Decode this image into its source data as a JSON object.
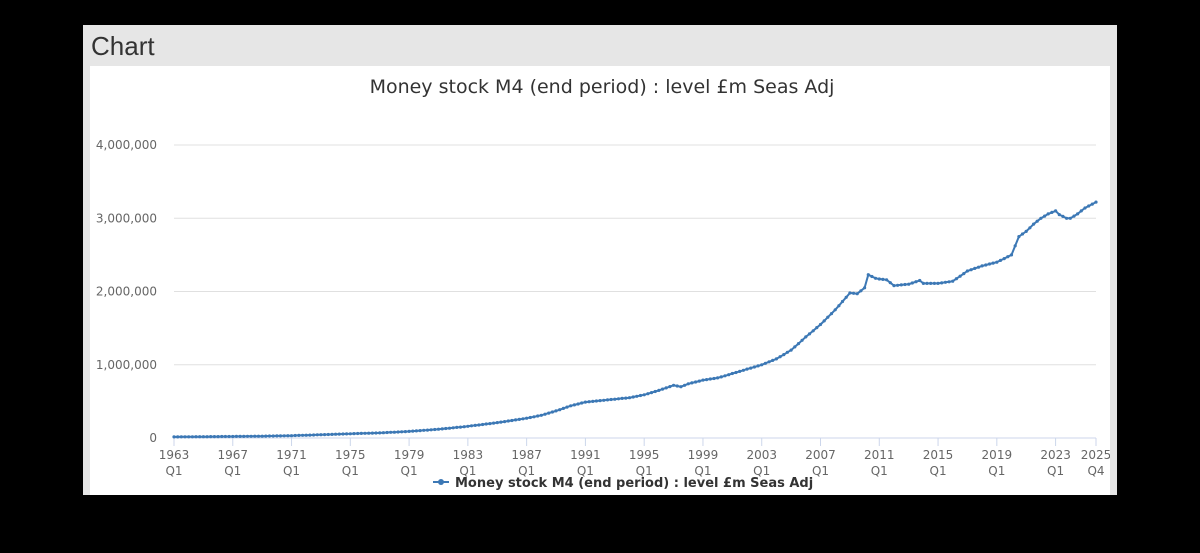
{
  "panel": {
    "title": "Chart"
  },
  "colors": {
    "series": "#3c78b5",
    "grid": "#e0e0e0",
    "axis": "#ccd6eb"
  },
  "chart_data": {
    "type": "line",
    "title": "Money stock M4 (end period) : level £m Seas Adj",
    "xlabel": "",
    "ylabel": "",
    "ylim": [
      0,
      4000000
    ],
    "y_ticks": [
      0,
      1000000,
      2000000,
      3000000,
      4000000
    ],
    "y_tick_labels": [
      "0",
      "1,000,000",
      "2,000,000",
      "3,000,000",
      "4,000,000"
    ],
    "x_range": [
      1963.0,
      2025.75
    ],
    "x_ticks": [
      {
        "year": "1963",
        "q": "Q1",
        "x": 1963.0
      },
      {
        "year": "1967",
        "q": "Q1",
        "x": 1967.0
      },
      {
        "year": "1971",
        "q": "Q1",
        "x": 1971.0
      },
      {
        "year": "1975",
        "q": "Q1",
        "x": 1975.0
      },
      {
        "year": "1979",
        "q": "Q1",
        "x": 1979.0
      },
      {
        "year": "1983",
        "q": "Q1",
        "x": 1983.0
      },
      {
        "year": "1987",
        "q": "Q1",
        "x": 1987.0
      },
      {
        "year": "1991",
        "q": "Q1",
        "x": 1991.0
      },
      {
        "year": "1995",
        "q": "Q1",
        "x": 1995.0
      },
      {
        "year": "1999",
        "q": "Q1",
        "x": 1999.0
      },
      {
        "year": "2003",
        "q": "Q1",
        "x": 2003.0
      },
      {
        "year": "2007",
        "q": "Q1",
        "x": 2007.0
      },
      {
        "year": "2011",
        "q": "Q1",
        "x": 2011.0
      },
      {
        "year": "2015",
        "q": "Q1",
        "x": 2015.0
      },
      {
        "year": "2019",
        "q": "Q1",
        "x": 2019.0
      },
      {
        "year": "2023",
        "q": "Q1",
        "x": 2023.0
      },
      {
        "year": "2025",
        "q": "Q4",
        "x": 2025.75
      }
    ],
    "legend": "bottom-center",
    "series": [
      {
        "name": "Money stock M4 (end period) : level £m Seas Adj",
        "points": [
          [
            1963.0,
            15000
          ],
          [
            1965.0,
            18000
          ],
          [
            1967.0,
            21000
          ],
          [
            1969.0,
            25000
          ],
          [
            1971.0,
            32000
          ],
          [
            1973.0,
            45000
          ],
          [
            1975.0,
            58000
          ],
          [
            1977.0,
            70000
          ],
          [
            1979.0,
            90000
          ],
          [
            1981.0,
            120000
          ],
          [
            1983.0,
            160000
          ],
          [
            1985.0,
            210000
          ],
          [
            1987.0,
            270000
          ],
          [
            1988.0,
            310000
          ],
          [
            1989.0,
            370000
          ],
          [
            1990.0,
            440000
          ],
          [
            1991.0,
            490000
          ],
          [
            1992.0,
            510000
          ],
          [
            1993.0,
            530000
          ],
          [
            1994.0,
            550000
          ],
          [
            1995.0,
            590000
          ],
          [
            1996.0,
            650000
          ],
          [
            1997.0,
            720000
          ],
          [
            1997.5,
            700000
          ],
          [
            1998.0,
            740000
          ],
          [
            1999.0,
            790000
          ],
          [
            2000.0,
            820000
          ],
          [
            2001.0,
            880000
          ],
          [
            2002.0,
            940000
          ],
          [
            2003.0,
            1000000
          ],
          [
            2004.0,
            1080000
          ],
          [
            2005.0,
            1200000
          ],
          [
            2006.0,
            1380000
          ],
          [
            2007.0,
            1550000
          ],
          [
            2008.0,
            1750000
          ],
          [
            2009.0,
            1980000
          ],
          [
            2009.5,
            1970000
          ],
          [
            2010.0,
            2050000
          ],
          [
            2010.25,
            2230000
          ],
          [
            2010.75,
            2180000
          ],
          [
            2011.0,
            2170000
          ],
          [
            2011.5,
            2160000
          ],
          [
            2012.0,
            2080000
          ],
          [
            2013.0,
            2100000
          ],
          [
            2013.75,
            2150000
          ],
          [
            2014.0,
            2110000
          ],
          [
            2015.0,
            2110000
          ],
          [
            2016.0,
            2140000
          ],
          [
            2017.0,
            2280000
          ],
          [
            2018.0,
            2350000
          ],
          [
            2019.0,
            2400000
          ],
          [
            2020.0,
            2500000
          ],
          [
            2020.5,
            2750000
          ],
          [
            2021.0,
            2820000
          ],
          [
            2021.5,
            2920000
          ],
          [
            2022.0,
            3000000
          ],
          [
            2022.5,
            3060000
          ],
          [
            2023.0,
            3100000
          ],
          [
            2023.25,
            3050000
          ],
          [
            2023.75,
            3000000
          ],
          [
            2024.0,
            3000000
          ],
          [
            2024.5,
            3060000
          ],
          [
            2025.0,
            3140000
          ],
          [
            2025.75,
            3220000
          ]
        ]
      }
    ]
  }
}
